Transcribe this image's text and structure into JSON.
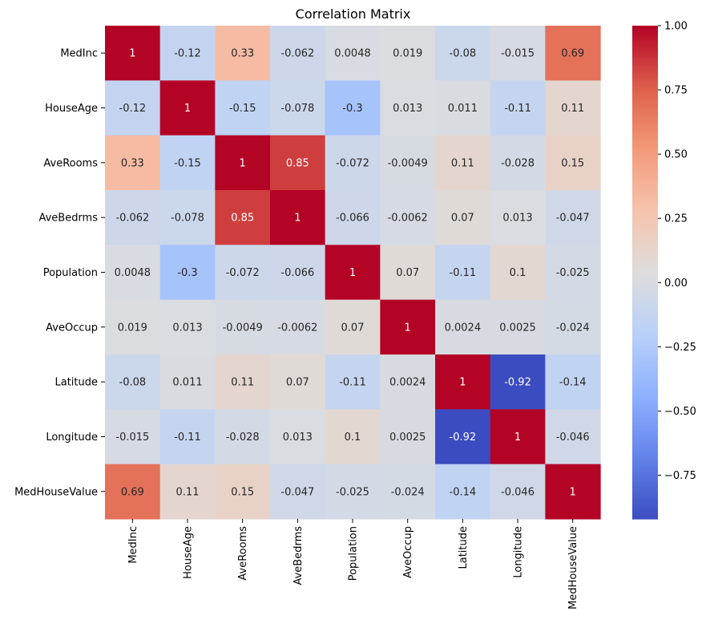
{
  "chart_data": {
    "type": "heatmap",
    "title": "Correlation Matrix",
    "colormap": "coolwarm",
    "row_labels": [
      "MedInc",
      "HouseAge",
      "AveRooms",
      "AveBedrms",
      "Population",
      "AveOccup",
      "Latitude",
      "Longitude",
      "MedHouseValue"
    ],
    "col_labels": [
      "MedInc",
      "HouseAge",
      "AveRooms",
      "AveBedrms",
      "Population",
      "AveOccup",
      "Latitude",
      "Longitude",
      "MedHouseValue"
    ],
    "values": [
      [
        1,
        -0.12,
        0.33,
        -0.062,
        0.0048,
        0.019,
        -0.08,
        -0.015,
        0.69
      ],
      [
        -0.12,
        1,
        -0.15,
        -0.078,
        -0.3,
        0.013,
        0.011,
        -0.11,
        0.11
      ],
      [
        0.33,
        -0.15,
        1,
        0.85,
        -0.072,
        -0.0049,
        0.11,
        -0.028,
        0.15
      ],
      [
        -0.062,
        -0.078,
        0.85,
        1,
        -0.066,
        -0.0062,
        0.07,
        0.013,
        -0.047
      ],
      [
        0.0048,
        -0.3,
        -0.072,
        -0.066,
        1,
        0.07,
        -0.11,
        0.1,
        -0.025
      ],
      [
        0.019,
        0.013,
        -0.0049,
        -0.0062,
        0.07,
        1,
        0.0024,
        0.0025,
        -0.024
      ],
      [
        -0.08,
        0.011,
        0.11,
        0.07,
        -0.11,
        0.0024,
        1,
        -0.92,
        -0.14
      ],
      [
        -0.015,
        -0.11,
        -0.028,
        0.013,
        0.1,
        0.0025,
        -0.92,
        1,
        -0.046
      ],
      [
        0.69,
        0.11,
        0.15,
        -0.047,
        -0.025,
        -0.024,
        -0.14,
        -0.046,
        1
      ]
    ],
    "annotations": [
      [
        "1",
        "-0.12",
        "0.33",
        "-0.062",
        "0.0048",
        "0.019",
        "-0.08",
        "-0.015",
        "0.69"
      ],
      [
        "-0.12",
        "1",
        "-0.15",
        "-0.078",
        "-0.3",
        "0.013",
        "0.011",
        "-0.11",
        "0.11"
      ],
      [
        "0.33",
        "-0.15",
        "1",
        "0.85",
        "-0.072",
        "-0.0049",
        "0.11",
        "-0.028",
        "0.15"
      ],
      [
        "-0.062",
        "-0.078",
        "0.85",
        "1",
        "-0.066",
        "-0.0062",
        "0.07",
        "0.013",
        "-0.047"
      ],
      [
        "0.0048",
        "-0.3",
        "-0.072",
        "-0.066",
        "1",
        "0.07",
        "-0.11",
        "0.1",
        "-0.025"
      ],
      [
        "0.019",
        "0.013",
        "-0.0049",
        "-0.0062",
        "0.07",
        "1",
        "0.0024",
        "0.0025",
        "-0.024"
      ],
      [
        "-0.08",
        "0.011",
        "0.11",
        "0.07",
        "-0.11",
        "0.0024",
        "1",
        "-0.92",
        "-0.14"
      ],
      [
        "-0.015",
        "-0.11",
        "-0.028",
        "0.013",
        "0.1",
        "0.0025",
        "-0.92",
        "1",
        "-0.046"
      ],
      [
        "0.69",
        "0.11",
        "0.15",
        "-0.047",
        "-0.025",
        "-0.024",
        "-0.14",
        "-0.046",
        "1"
      ]
    ],
    "colorbar": {
      "range": [
        -0.92,
        1.0
      ],
      "ticks": [
        1.0,
        0.75,
        0.5,
        0.25,
        0.0,
        -0.25,
        -0.5,
        -0.75
      ],
      "tick_labels": [
        "1.00",
        "0.75",
        "0.50",
        "0.25",
        "0.00",
        "−0.25",
        "−0.50",
        "−0.75"
      ]
    }
  }
}
